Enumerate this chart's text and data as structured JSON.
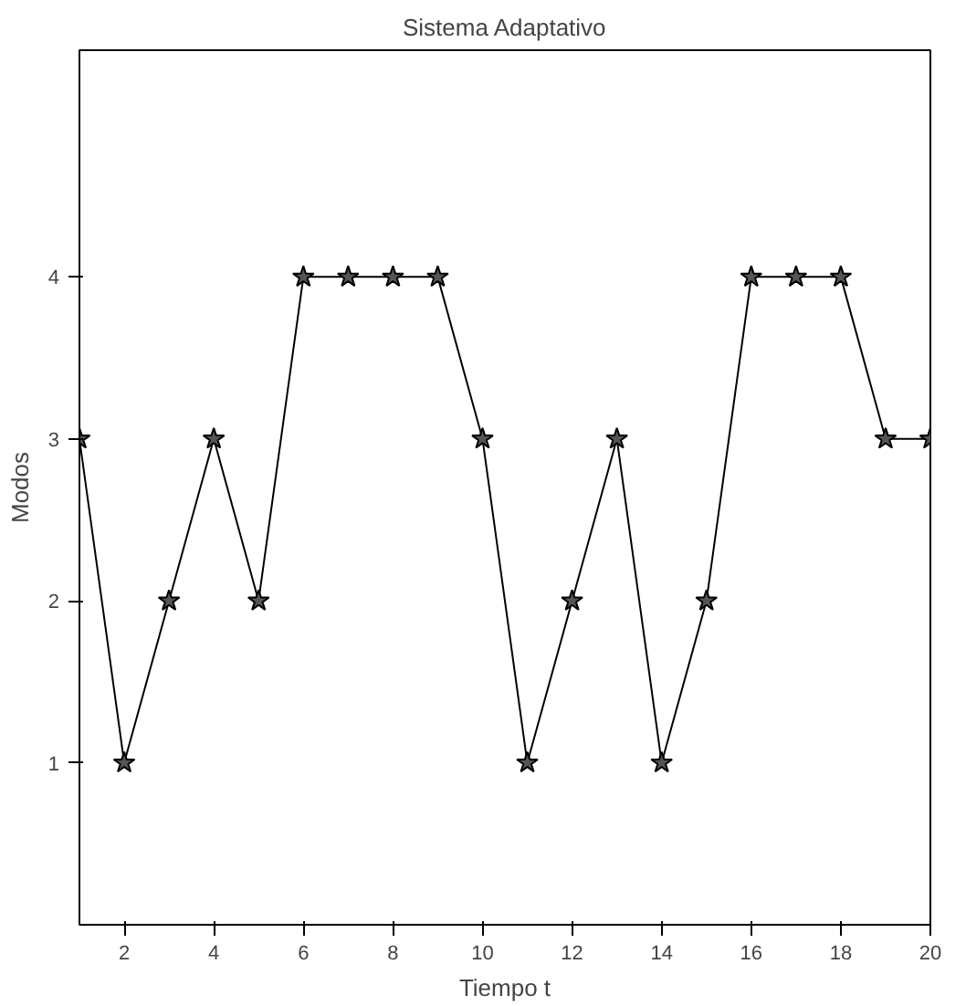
{
  "chart_data": {
    "type": "line",
    "title": "Sistema Adaptativo",
    "xlabel": "Tiempo t",
    "ylabel": "Modos",
    "x": [
      1,
      2,
      3,
      4,
      5,
      6,
      7,
      8,
      9,
      10,
      11,
      12,
      13,
      14,
      15,
      16,
      17,
      18,
      19,
      20
    ],
    "series": [
      {
        "color": "#000000",
        "values": [
          3,
          1,
          2,
          3,
          2,
          4,
          4,
          4,
          4,
          3,
          1,
          2,
          3,
          1,
          2,
          4,
          4,
          4,
          3,
          3
        ]
      }
    ],
    "xlim": [
      1,
      20
    ],
    "ylim": [
      0,
      5.4
    ],
    "xticks": [
      2,
      4,
      6,
      8,
      10,
      12,
      14,
      16,
      18,
      20
    ],
    "yticks": [
      1,
      2,
      3,
      4
    ],
    "marker": "star",
    "line_style": "solid",
    "grid": false
  }
}
